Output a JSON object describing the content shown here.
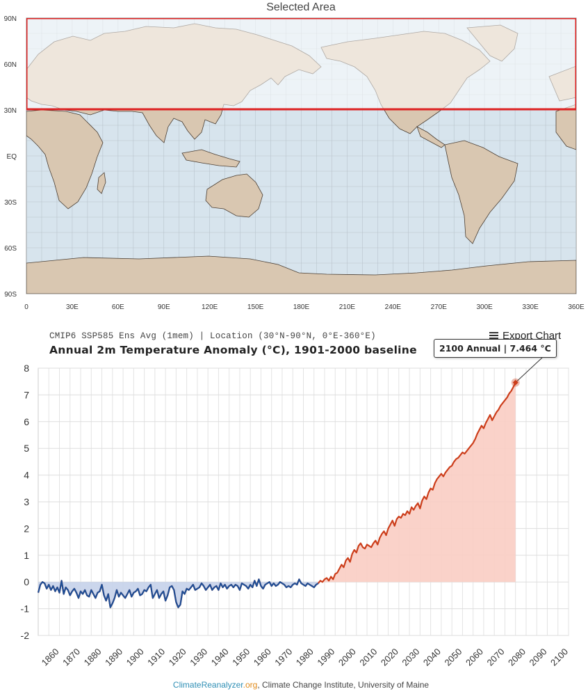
{
  "map": {
    "title": "Selected Area",
    "lat_labels": [
      "90N",
      "60N",
      "30N",
      "EQ",
      "30S",
      "60S",
      "90S"
    ],
    "lon_labels": [
      "0",
      "30E",
      "60E",
      "90E",
      "120E",
      "150E",
      "180E",
      "210E",
      "240E",
      "270E",
      "300E",
      "330E",
      "360E"
    ],
    "selection_color": "#dd2222",
    "ocean_color": "#d7e4ed",
    "land_color": "#d9c7b1"
  },
  "header": {
    "subtitle": "CMIP6 SSP585 Ens Avg (1mem) | Location (30°N-90°N, 0°E-360°E)",
    "title": "Annual 2m Temperature Anomaly (°C), 1901-2000 baseline",
    "export_label": "Export Chart"
  },
  "tooltip": {
    "text": "2100 Annual | 7.464 °C"
  },
  "footer": {
    "brand_main": "ClimateReanalyzer",
    "brand_suffix": ".org",
    "rest": ", Climate Change Institute, University of Maine"
  },
  "colors": {
    "historical": "#1e4e96",
    "historical_fill": "#c5d2ea",
    "projection": "#cc3d1a",
    "projection_fill": "#f9cdc3"
  },
  "chart_data": {
    "type": "area",
    "ylim": [
      -2,
      8
    ],
    "y_ticks": [
      8,
      7,
      6,
      5,
      4,
      3,
      2,
      1,
      0,
      -1,
      -2
    ],
    "x_ticks": [
      1860,
      1870,
      1880,
      1890,
      1900,
      1910,
      1920,
      1930,
      1940,
      1950,
      1960,
      1970,
      1980,
      1990,
      2000,
      2010,
      2020,
      2030,
      2040,
      2050,
      2060,
      2070,
      2080,
      2090,
      2100
    ],
    "xlim": [
      1850,
      2100
    ],
    "series": [
      {
        "x_start": 1850,
        "values": [
          -0.4,
          -0.1,
          0.0,
          -0.05,
          -0.25,
          -0.1,
          -0.3,
          -0.15,
          -0.35,
          -0.2,
          -0.4,
          0.05,
          -0.45,
          -0.2,
          -0.3,
          -0.5,
          -0.35,
          -0.25,
          -0.4,
          -0.6,
          -0.35,
          -0.45,
          -0.3,
          -0.5,
          -0.55,
          -0.3,
          -0.45,
          -0.6,
          -0.4,
          -0.35,
          -0.1,
          -0.5,
          -0.7,
          -0.45,
          -0.95,
          -0.8,
          -0.6,
          -0.3,
          -0.55,
          -0.4,
          -0.5,
          -0.6,
          -0.45,
          -0.3,
          -0.55,
          -0.4,
          -0.35,
          -0.25,
          -0.5,
          -0.45,
          -0.3,
          -0.35,
          -0.2,
          -0.1,
          -0.6,
          -0.45,
          -0.3,
          -0.6,
          -0.45,
          -0.35,
          -0.7,
          -0.5,
          -0.2,
          -0.15,
          -0.3,
          -0.75,
          -0.95,
          -0.85,
          -0.35,
          -0.45,
          -0.25,
          -0.3,
          -0.2,
          -0.1,
          -0.3,
          -0.25,
          -0.2,
          -0.05,
          -0.15,
          -0.3,
          -0.2,
          -0.1,
          -0.3,
          -0.2,
          -0.15,
          -0.3,
          -0.05,
          -0.2,
          -0.1,
          -0.25,
          -0.15,
          -0.1,
          -0.2,
          -0.1,
          -0.15,
          -0.3,
          -0.05,
          -0.1,
          -0.15,
          -0.25,
          -0.1,
          -0.2,
          0.05,
          -0.15,
          0.1,
          -0.15,
          -0.25,
          -0.1,
          -0.05,
          0.0,
          -0.15,
          -0.05,
          -0.15,
          -0.1,
          0.0,
          -0.05,
          -0.1,
          -0.2,
          -0.15,
          -0.2,
          -0.1,
          -0.05,
          -0.1,
          0.1,
          -0.05,
          -0.1,
          -0.15,
          -0.05,
          -0.1,
          -0.15,
          -0.2,
          -0.1,
          -0.05
        ]
      },
      {
        "x_start": 1850,
        "values": [
          -0.4,
          -0.1,
          0.0,
          -0.05,
          -0.25,
          -0.1,
          -0.3,
          -0.15,
          -0.35,
          -0.2,
          -0.4,
          0.05,
          -0.45,
          -0.2,
          -0.3,
          -0.5,
          -0.35,
          -0.25,
          -0.4,
          -0.6,
          -0.35,
          -0.45,
          -0.3,
          -0.5,
          -0.55,
          -0.3,
          -0.45,
          -0.6,
          -0.4,
          -0.35,
          -0.1,
          -0.5,
          -0.7,
          -0.45,
          -0.95,
          -0.8,
          -0.6,
          -0.3,
          -0.55,
          -0.4,
          -0.5,
          -0.6,
          -0.45,
          -0.3,
          -0.55,
          -0.4,
          -0.35,
          -0.25,
          -0.5,
          -0.45,
          -0.3,
          -0.35,
          -0.2,
          -0.1,
          -0.6,
          -0.45,
          -0.3,
          -0.6,
          -0.45,
          -0.35,
          -0.7,
          -0.5,
          -0.2,
          -0.15,
          -0.3,
          -0.75,
          -0.95,
          -0.85,
          -0.35,
          -0.45,
          -0.25,
          -0.3,
          -0.2,
          -0.1,
          -0.3,
          -0.25,
          -0.2,
          -0.05,
          -0.15,
          -0.3,
          -0.2,
          -0.1,
          -0.3,
          -0.2,
          -0.15,
          -0.3,
          -0.05,
          -0.2,
          -0.1,
          -0.25,
          -0.15,
          -0.1,
          -0.2,
          -0.1,
          -0.15,
          -0.3,
          -0.05,
          -0.1,
          -0.15,
          -0.25,
          -0.1,
          -0.2,
          0.05,
          -0.15,
          0.1,
          -0.15,
          -0.25,
          -0.1,
          -0.05,
          0.0,
          -0.15,
          -0.05,
          -0.15,
          -0.1,
          0.0,
          -0.05,
          -0.1,
          -0.2,
          -0.15,
          -0.2,
          -0.1,
          -0.05,
          -0.1,
          0.1,
          -0.05,
          -0.1,
          -0.15,
          -0.05,
          -0.1,
          -0.15,
          -0.2,
          -0.1,
          -0.05,
          0.05,
          0.0,
          0.1,
          0.15,
          0.05,
          0.2,
          0.1,
          0.3,
          0.35,
          0.5,
          0.65,
          0.55,
          0.8,
          0.9,
          0.75,
          1.05,
          1.2,
          1.1,
          1.35,
          1.45,
          1.3,
          1.25,
          1.4,
          1.35,
          1.3,
          1.45,
          1.55,
          1.4,
          1.65,
          1.8,
          1.9,
          1.75,
          2.0,
          2.15,
          2.3,
          2.1,
          2.35,
          2.45,
          2.4,
          2.55,
          2.5,
          2.65,
          2.55,
          2.8,
          2.7,
          2.85,
          2.95,
          2.75,
          3.05,
          3.2,
          3.1,
          3.35,
          3.5,
          3.45,
          3.7,
          3.85,
          3.95,
          4.05,
          3.95,
          4.1,
          4.2,
          4.3,
          4.35,
          4.5,
          4.6,
          4.65,
          4.75,
          4.85,
          4.8,
          4.9,
          5.0,
          5.1,
          5.2,
          5.35,
          5.55,
          5.7,
          5.85,
          5.75,
          5.95,
          6.1,
          6.25,
          6.05,
          6.2,
          6.35,
          6.45,
          6.6,
          6.7,
          6.8,
          6.9,
          7.05,
          7.15,
          7.3,
          7.464
        ]
      }
    ]
  }
}
